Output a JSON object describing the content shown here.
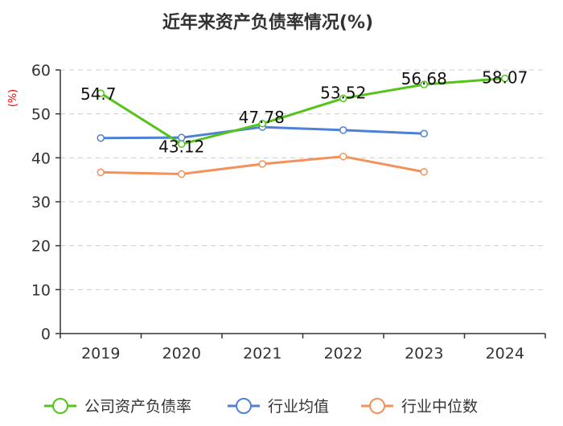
{
  "chart_data": {
    "type": "line",
    "title": "近年来资产负债率情况(%)",
    "ylabel": "(%)",
    "xlabel": "",
    "categories": [
      "2019",
      "2020",
      "2021",
      "2022",
      "2023",
      "2024"
    ],
    "ylim": [
      0,
      60
    ],
    "yticks": [
      0,
      10,
      20,
      30,
      40,
      50,
      60
    ],
    "grid": true,
    "legend_position": "bottom",
    "series": [
      {
        "name": "公司资产负债率",
        "color": "#52c41a",
        "values": [
          54.7,
          43.12,
          47.78,
          53.52,
          56.68,
          58.07
        ],
        "labels": [
          "54.7",
          "43.12",
          "47.78",
          "53.52",
          "56.68",
          "58.07"
        ]
      },
      {
        "name": "行业均值",
        "color": "#4e7fd9",
        "values": [
          44.5,
          44.6,
          47.0,
          46.3,
          45.5,
          null
        ]
      },
      {
        "name": "行业中位数",
        "color": "#f4915a",
        "values": [
          36.7,
          36.3,
          38.6,
          40.3,
          36.8,
          null
        ]
      }
    ],
    "unit_color": "#ff0000"
  }
}
